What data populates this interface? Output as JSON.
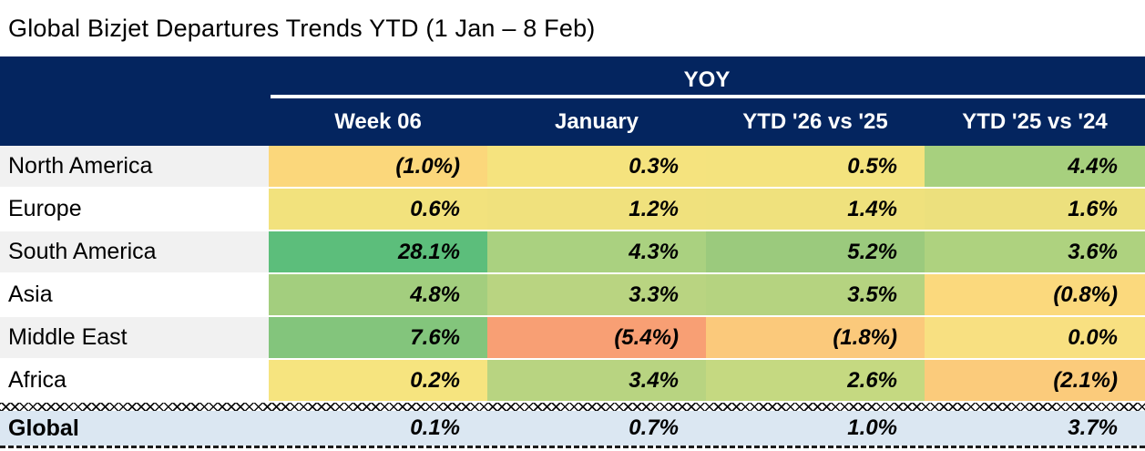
{
  "title": "Global Bizjet Departures Trends YTD (1 Jan – 8 Feb)",
  "table": {
    "group_header": "YOY",
    "columns": [
      "Week 06",
      "January",
      "YTD '26 vs '25",
      "YTD '25 vs '24"
    ],
    "rows": [
      {
        "label": "North America",
        "values": [
          "(1.0%)",
          "0.3%",
          "0.5%",
          "4.4%"
        ],
        "colors": [
          "#FBD77B",
          "#F5E37E",
          "#F4E37E",
          "#A7D07E"
        ]
      },
      {
        "label": "Europe",
        "values": [
          "0.6%",
          "1.2%",
          "1.4%",
          "1.6%"
        ],
        "colors": [
          "#F2E27D",
          "#F0E17D",
          "#EFE17D",
          "#ECE07D"
        ]
      },
      {
        "label": "South America",
        "values": [
          "28.1%",
          "4.3%",
          "5.2%",
          "3.6%"
        ],
        "colors": [
          "#5CBE7B",
          "#AAD180",
          "#9BCA7D",
          "#AED27F"
        ]
      },
      {
        "label": "Asia",
        "values": [
          "4.8%",
          "3.3%",
          "3.5%",
          "(0.8%)"
        ],
        "colors": [
          "#A3CE7E",
          "#B9D481",
          "#B5D380",
          "#FBD97D"
        ]
      },
      {
        "label": "Middle East",
        "values": [
          "7.6%",
          "(5.4%)",
          "(1.8%)",
          "0.0%"
        ],
        "colors": [
          "#83C57C",
          "#F89F74",
          "#FBC97B",
          "#F8E081"
        ]
      },
      {
        "label": "Africa",
        "values": [
          "0.2%",
          "3.4%",
          "2.6%",
          "(2.1%)"
        ],
        "colors": [
          "#F6E47F",
          "#B8D481",
          "#C5D981",
          "#FBCB7B"
        ]
      }
    ],
    "global_row": {
      "label": "Global",
      "values": [
        "0.1%",
        "0.7%",
        "1.0%",
        "3.7%"
      ]
    }
  },
  "colors": {
    "header_navy": "#04255F",
    "row_stripe_gray": "#F1F1F1",
    "global_row_blue": "#DBE7F2",
    "scale_green": "#5CBE7B",
    "scale_yellow": "#F5E37E",
    "scale_red": "#F89F74"
  },
  "chart_data": {
    "type": "heatmap",
    "title": "Global Bizjet Departures Trends YTD (1 Jan – 8 Feb)",
    "group_header": "YOY",
    "columns": [
      "Week 06",
      "January",
      "YTD '26 vs '25",
      "YTD '25 vs '24"
    ],
    "rows": [
      "North America",
      "Europe",
      "South America",
      "Asia",
      "Middle East",
      "Africa",
      "Global"
    ],
    "values_pct": [
      [
        -1.0,
        0.3,
        0.5,
        4.4
      ],
      [
        0.6,
        1.2,
        1.4,
        1.6
      ],
      [
        28.1,
        4.3,
        5.2,
        3.6
      ],
      [
        4.8,
        3.3,
        3.5,
        -0.8
      ],
      [
        7.6,
        -5.4,
        -1.8,
        0.0
      ],
      [
        0.2,
        3.4,
        2.6,
        -2.1
      ],
      [
        0.1,
        0.7,
        1.0,
        3.7
      ]
    ],
    "color_scale": "red-yellow-green",
    "notes": "negative values shown in parentheses; Global summary row on light blue"
  }
}
